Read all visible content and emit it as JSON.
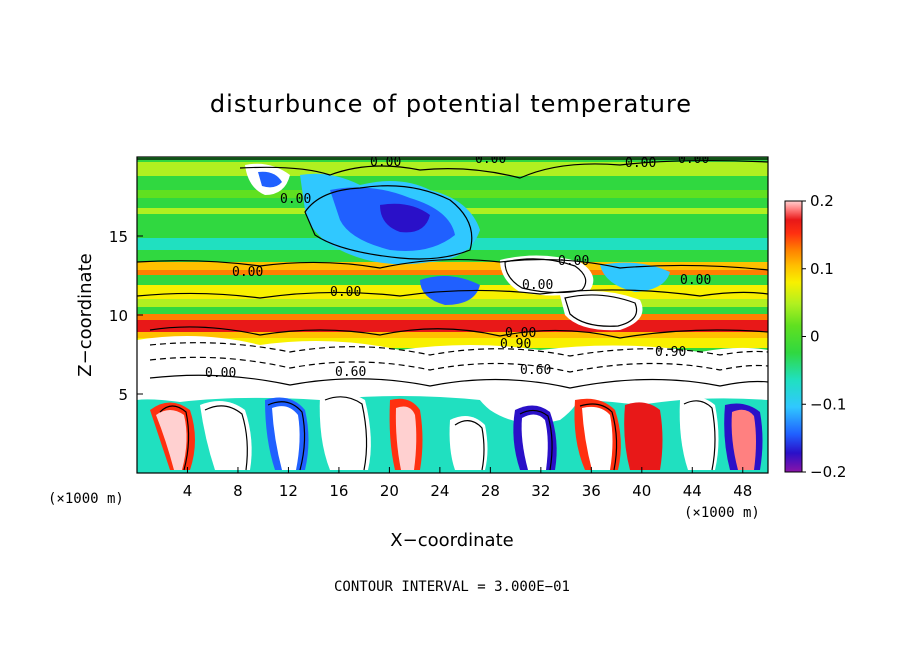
{
  "chart_data": {
    "type": "heatmap",
    "title": "disturbunce of potential temperature",
    "xlabel": "X−coordinate",
    "ylabel": "Z−coordinate",
    "x_unit_left": "(×1000 m)",
    "x_unit_right": "(×1000 m)",
    "xlim": [
      0,
      50
    ],
    "ylim": [
      0,
      20
    ],
    "x_ticks": [
      4,
      8,
      12,
      16,
      20,
      24,
      28,
      32,
      36,
      40,
      44,
      48
    ],
    "x_tick_labels": [
      "4",
      "8",
      "12",
      "16",
      "20",
      "24",
      "28",
      "32",
      "36",
      "40",
      "44",
      "48"
    ],
    "y_ticks": [
      5,
      10,
      15
    ],
    "y_tick_labels": [
      "5",
      "10",
      "15"
    ],
    "colorbar": {
      "range": [
        -0.2,
        0.2
      ],
      "ticks": [
        0.2,
        0.1,
        0,
        -0.1,
        -0.2
      ],
      "tick_labels": [
        "0.2",
        "0.1",
        "0",
        "−0.1",
        "−0.2"
      ],
      "colors": [
        "#8a14a8",
        "#2a10c8",
        "#2060ff",
        "#30c8ff",
        "#20e0c0",
        "#30d840",
        "#60e020",
        "#b0f020",
        "#f8f000",
        "#ffc000",
        "#ff8000",
        "#ff3010",
        "#e81818",
        "#ff8080",
        "#ffd0d0"
      ]
    },
    "contour_labels": [
      "0.00",
      "0.00",
      "0.00",
      "0.00",
      "0.00",
      "0.00",
      "0.00",
      "0.00",
      "0.00",
      "0.00",
      "0.00",
      "0.00",
      "0.60",
      "0.60",
      "0.90",
      "0.90"
    ],
    "footer": "CONTOUR INTERVAL = 3.000E−01"
  }
}
